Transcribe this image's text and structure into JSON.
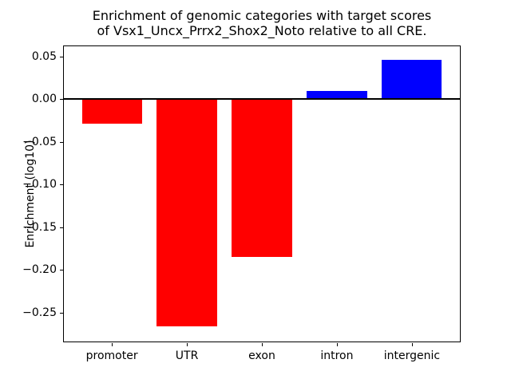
{
  "chart_data": {
    "type": "bar",
    "title": "Enrichment of genomic categories with target scores\nof Vsx1_Uncx_Prrx2_Shox2_Noto relative to all CRE.",
    "ylabel": "Enrichment (log10)",
    "xlabel": "",
    "categories": [
      "promoter",
      "UTR",
      "exon",
      "intron",
      "intergenic"
    ],
    "values": [
      -0.029,
      -0.266,
      -0.185,
      0.01,
      0.046
    ],
    "bar_colors": [
      "#ff0000",
      "#ff0000",
      "#ff0000",
      "#0000ff",
      "#0000ff"
    ],
    "negative_color": "#ff0000",
    "positive_color": "#0000ff",
    "ytick_values": [
      0.05,
      0.0,
      -0.05,
      -0.1,
      -0.15,
      -0.2,
      -0.25
    ],
    "ytick_labels": [
      "0.05",
      "0.00",
      "−0.05",
      "−0.10",
      "−0.15",
      "−0.20",
      "−0.25"
    ],
    "ylim": [
      -0.284,
      0.062
    ],
    "xlim": [
      -0.64,
      4.64
    ],
    "bar_width": 0.8,
    "zero_line": true,
    "grid": false,
    "legend": null
  }
}
